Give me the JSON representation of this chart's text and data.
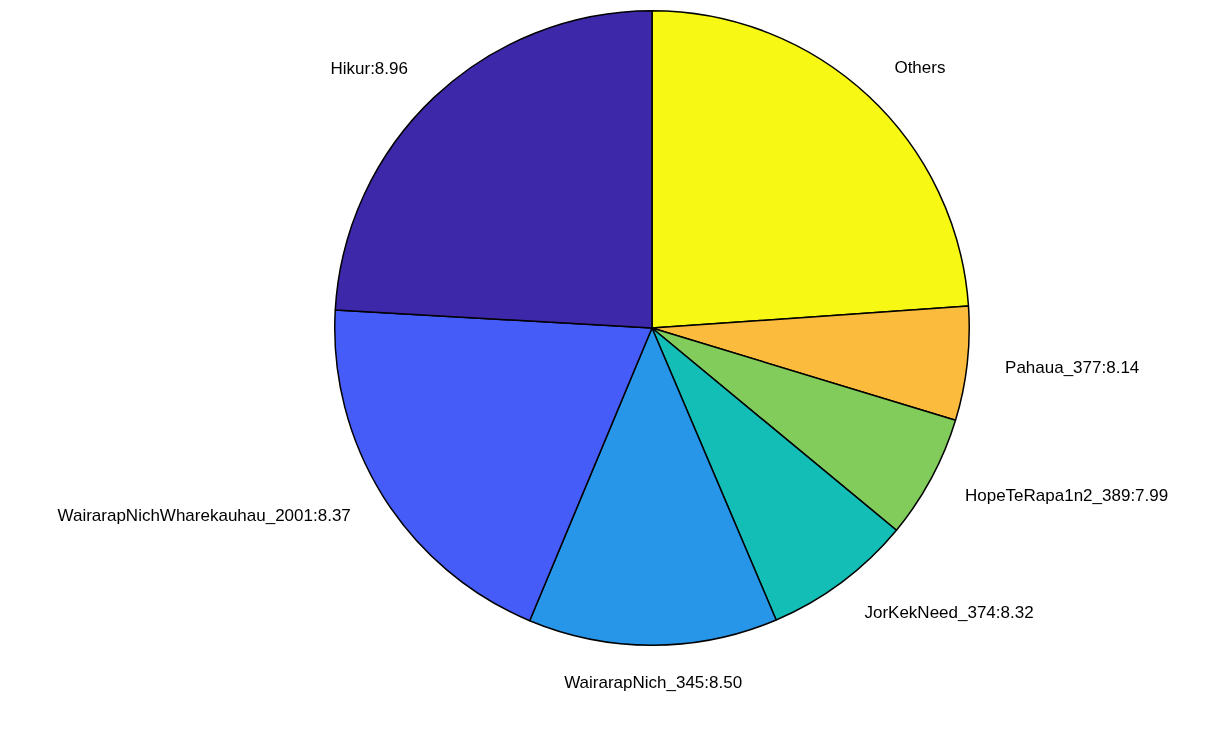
{
  "chart_data": {
    "type": "pie",
    "categories": [
      "Others",
      "Pahaua_377:8.14",
      "HopeTeRapa1n2_389:7.99",
      "JorKekNeed_374:8.32",
      "WairarapNich_345:8.50",
      "WairarapNichWharekauhau_2001:8.37",
      "Hikur:8.96"
    ],
    "values": [
      23.9,
      5.8,
      6.3,
      7.6,
      12.7,
      19.6,
      24.1
    ],
    "colors": [
      "#f7f914",
      "#fbbb3d",
      "#81cc5a",
      "#13beb7",
      "#2896e8",
      "#465cf8",
      "#3c28a8"
    ],
    "legend": false
  }
}
